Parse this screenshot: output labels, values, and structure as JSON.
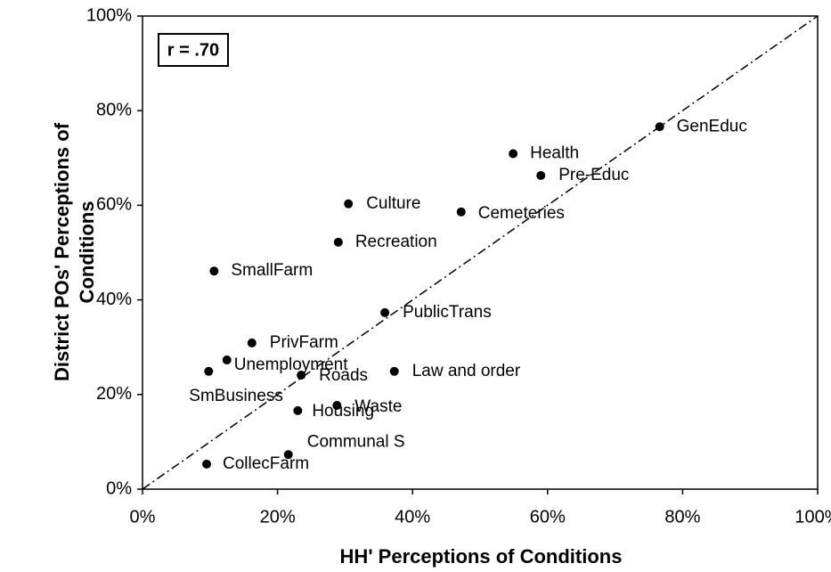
{
  "chart_data": {
    "type": "scatter",
    "annotation": "r = .70",
    "x_label": "HH' Perceptions of Conditions",
    "y_label": "District POs' Perceptions of Conditions",
    "labels": [
      "GenEduc",
      "Health",
      "Pre-Educ",
      "Cemeteries",
      "Culture",
      "Recreation",
      "SmallFarm",
      "PublicTrans",
      "PrivFarm",
      "Unemployment",
      "SmBusiness",
      "Roads",
      "Law and order",
      "Waste",
      "Housing",
      "Communal S",
      "CollecFarm"
    ],
    "x": [
      76.6,
      54.9,
      59,
      47.2,
      30.5,
      29,
      10.6,
      35.9,
      16.2,
      12.5,
      9.8,
      23.5,
      37.3,
      28.8,
      23,
      21.6,
      9.5
    ],
    "values": [
      76.6,
      70.9,
      66.3,
      58.6,
      60.3,
      52.2,
      46.1,
      37.3,
      30.9,
      27.3,
      24.9,
      24.1,
      24.9,
      17.7,
      16.6,
      7.3,
      5.3
    ],
    "color": "#000000",
    "xlim": [
      0,
      100
    ],
    "ylim": [
      0,
      100
    ],
    "xticks": [
      {
        "value": 0,
        "label": "0%"
      },
      {
        "value": 20,
        "label": "20%"
      },
      {
        "value": 40,
        "label": "40%"
      },
      {
        "value": 60,
        "label": "60%"
      },
      {
        "value": 80,
        "label": "80%"
      },
      {
        "value": 100,
        "label": "100%"
      }
    ],
    "yticks": [
      {
        "value": 0,
        "label": "0%"
      },
      {
        "value": 20,
        "label": "20%"
      },
      {
        "value": 40,
        "label": "40%"
      },
      {
        "value": 60,
        "label": "60%"
      },
      {
        "value": 80,
        "label": "80%"
      },
      {
        "value": 100,
        "label": "100%"
      }
    ]
  }
}
